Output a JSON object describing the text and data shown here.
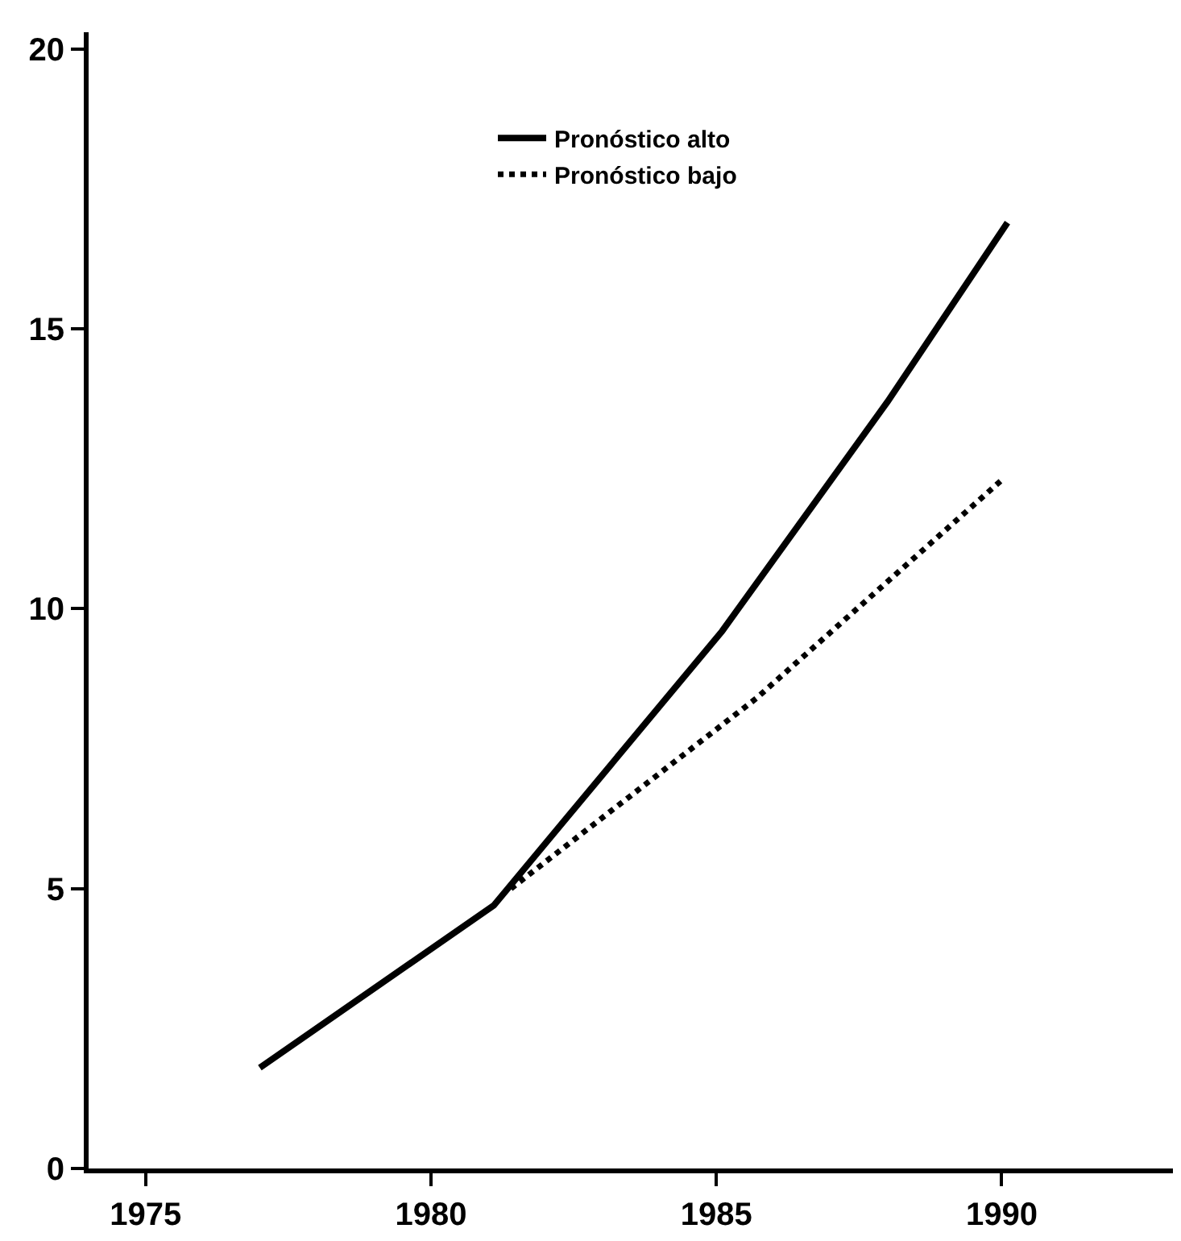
{
  "chart_data": {
    "type": "line",
    "series": [
      {
        "name": "Pronóstico alto",
        "color": "#000000",
        "line_style": "solid",
        "x": [
          1977,
          1981.1,
          1985.1,
          1988,
          1990.1
        ],
        "values": [
          1.8,
          4.7,
          9.6,
          13.7,
          16.9
        ]
      },
      {
        "name": "Pronóstico bajo",
        "color": "#000000",
        "line_style": "dotted",
        "x": [
          1981.4,
          1985.7,
          1990
        ],
        "values": [
          5.0,
          8.4,
          12.3
        ]
      }
    ],
    "xlim": [
      1974,
      1993
    ],
    "xticks": [
      1975,
      1980,
      1985,
      1990
    ],
    "ylim": [
      0,
      20.3
    ],
    "yticks": [
      0,
      5,
      10,
      15,
      20
    ],
    "legend": "top",
    "marker": "none"
  }
}
